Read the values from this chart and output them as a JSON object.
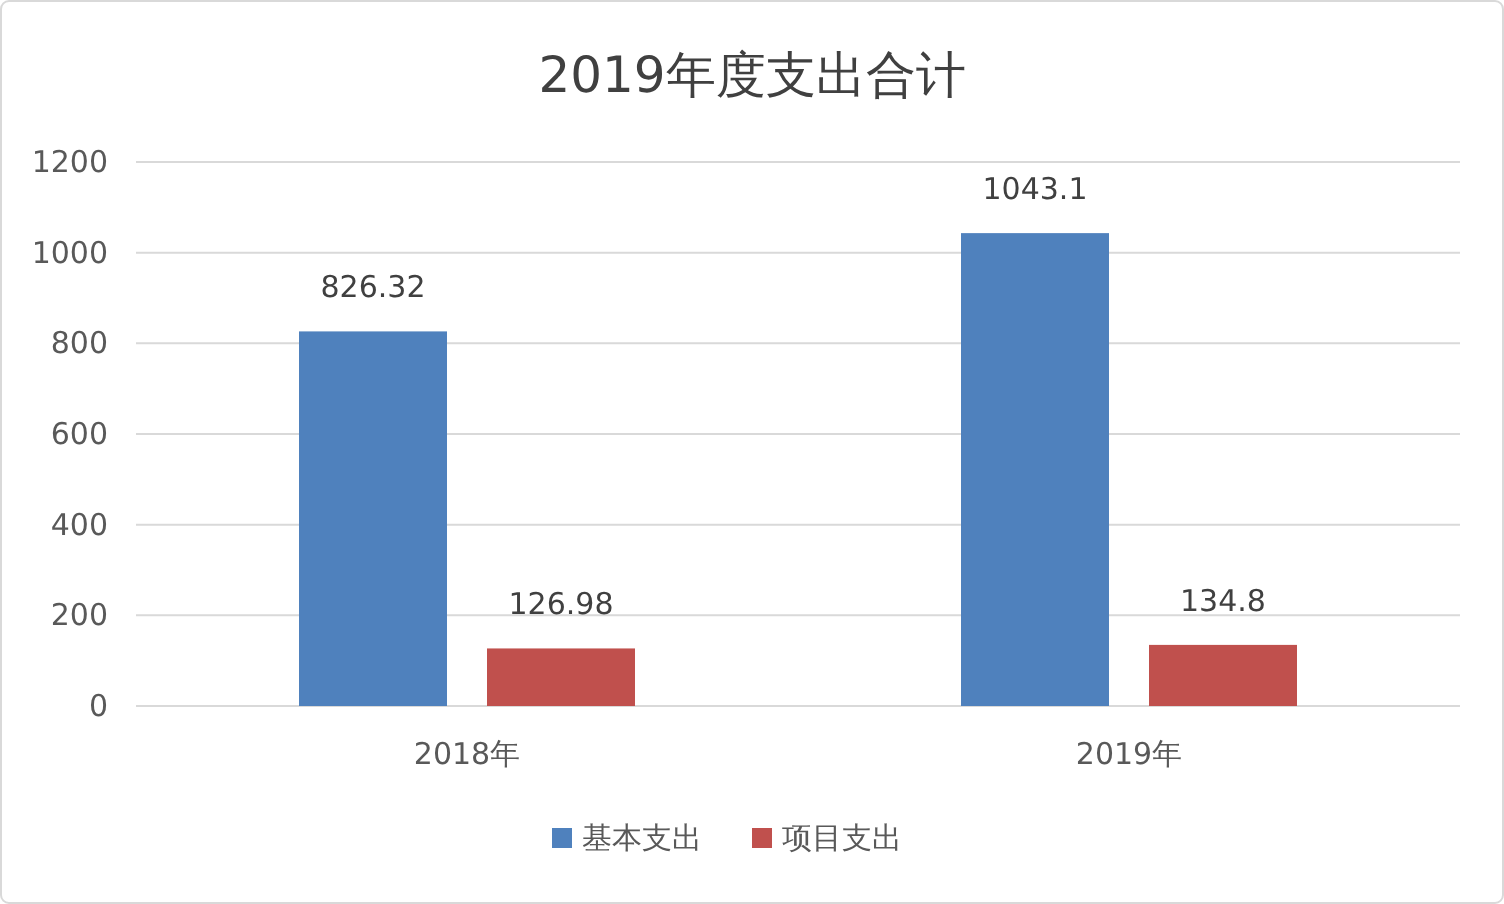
{
  "chart_data": {
    "type": "bar",
    "title": "2019年度支出合计",
    "categories": [
      "2018年",
      "2019年"
    ],
    "series": [
      {
        "name": "基本支出",
        "color": "#4f81bd",
        "values": [
          826.32,
          1043.1
        ]
      },
      {
        "name": "项目支出",
        "color": "#c0504d",
        "values": [
          126.98,
          134.8
        ]
      }
    ],
    "ylim": [
      0,
      1200
    ],
    "yticks": [
      0,
      200,
      400,
      600,
      800,
      1000,
      1200
    ],
    "grid": "y",
    "legend": "bottom",
    "data_labels": true
  }
}
